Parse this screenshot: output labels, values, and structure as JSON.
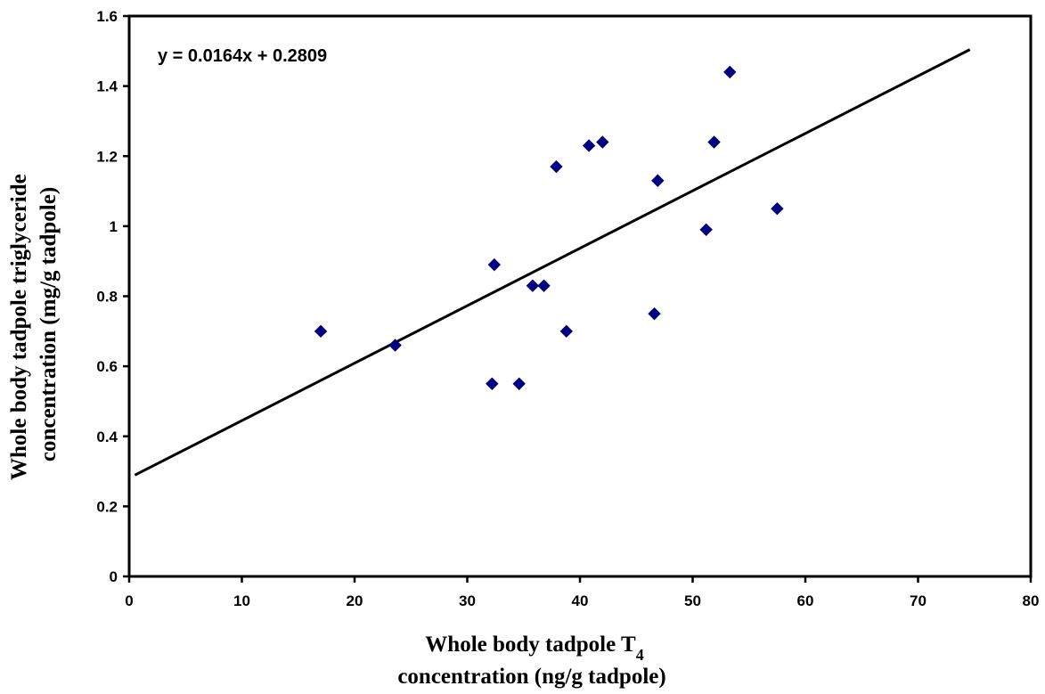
{
  "chart_data": {
    "type": "scatter",
    "title": "",
    "xlabel": "Whole body tadpole T4 concentration (ng/g tadpole)",
    "xlabel_lines": [
      {
        "text": "Whole body tadpole T",
        "subscript": "4"
      },
      {
        "text": "concentration (ng/g tadpole)",
        "subscript": ""
      }
    ],
    "ylabel_lines": [
      "Whole body tadpole triglyceride",
      "concentration (mg/g tadpole)"
    ],
    "xlim": [
      0,
      80
    ],
    "ylim": [
      0,
      1.6
    ],
    "x_ticks": [
      0,
      10,
      20,
      30,
      40,
      50,
      60,
      70,
      80
    ],
    "y_ticks": [
      0,
      0.2,
      0.4,
      0.6,
      0.8,
      1,
      1.2,
      1.4,
      1.6
    ],
    "x_tick_labels": [
      "0",
      "10",
      "20",
      "30",
      "40",
      "50",
      "60",
      "70",
      "80"
    ],
    "y_tick_labels": [
      "0",
      "0.2",
      "0.4",
      "0.6",
      "0.8",
      "1",
      "1.2",
      "1.4",
      "1.6"
    ],
    "grid": false,
    "legend": "none",
    "marker": "diamond",
    "marker_color": "#000080",
    "line_color": "#000000",
    "points": [
      {
        "x": 17.0,
        "y": 0.7
      },
      {
        "x": 23.6,
        "y": 0.66
      },
      {
        "x": 32.2,
        "y": 0.55
      },
      {
        "x": 32.4,
        "y": 0.89
      },
      {
        "x": 34.6,
        "y": 0.55
      },
      {
        "x": 35.8,
        "y": 0.83
      },
      {
        "x": 36.8,
        "y": 0.83
      },
      {
        "x": 37.9,
        "y": 1.17
      },
      {
        "x": 38.8,
        "y": 0.7
      },
      {
        "x": 40.8,
        "y": 1.23
      },
      {
        "x": 42.0,
        "y": 1.24
      },
      {
        "x": 46.6,
        "y": 0.75
      },
      {
        "x": 46.9,
        "y": 1.13
      },
      {
        "x": 51.2,
        "y": 0.99
      },
      {
        "x": 51.9,
        "y": 1.24
      },
      {
        "x": 53.3,
        "y": 1.44
      },
      {
        "x": 57.5,
        "y": 1.05
      }
    ],
    "trendline": {
      "slope": 0.0164,
      "intercept": 0.2809,
      "x_range": [
        0.5,
        74.6
      ],
      "equation_label": "y = 0.0164x + 0.2809"
    }
  }
}
